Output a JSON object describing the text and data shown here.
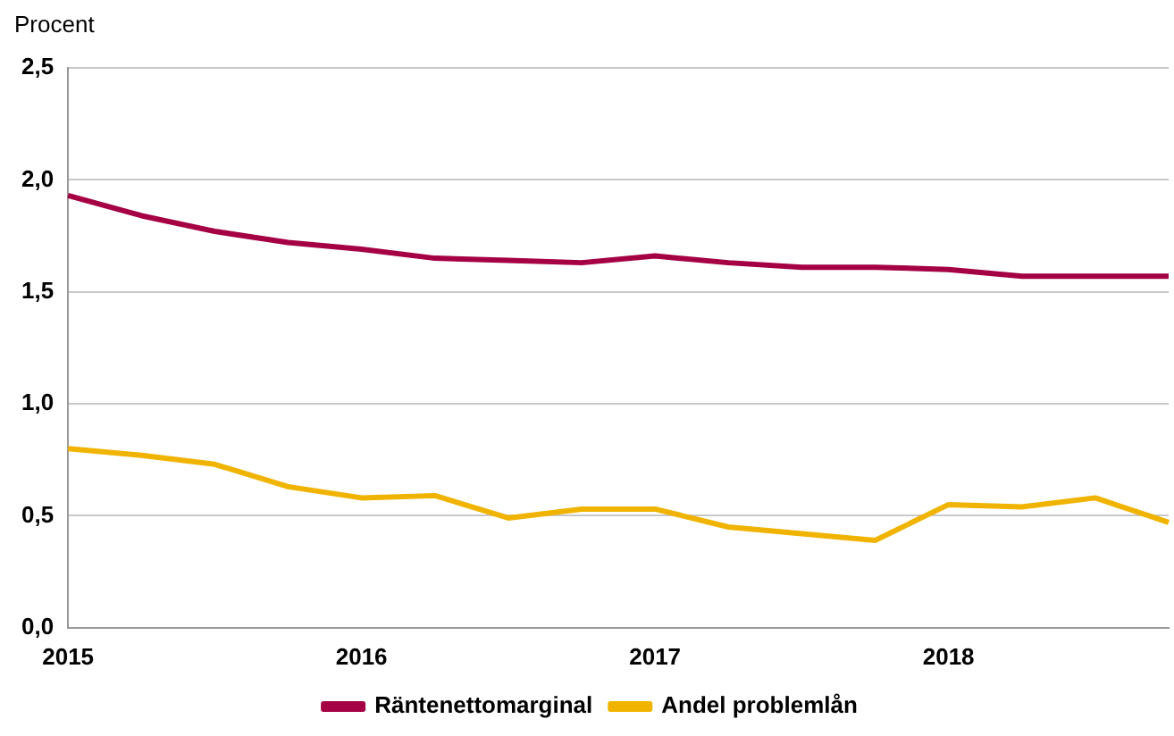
{
  "chart_data": {
    "type": "line",
    "ylabel": "Procent",
    "categories": [
      "2015",
      null,
      null,
      null,
      "2016",
      null,
      null,
      null,
      "2017",
      null,
      null,
      null,
      "2018",
      null,
      null,
      null
    ],
    "series": [
      {
        "name": "Räntenettomarginal",
        "color": "#a50044",
        "values": [
          1.93,
          1.84,
          1.77,
          1.72,
          1.69,
          1.65,
          1.64,
          1.63,
          1.66,
          1.63,
          1.61,
          1.61,
          1.6,
          1.57,
          1.57,
          1.57
        ]
      },
      {
        "name": "Andel problemlån",
        "color": "#f0b400",
        "values": [
          0.8,
          0.77,
          0.73,
          0.63,
          0.58,
          0.59,
          0.49,
          0.53,
          0.53,
          0.45,
          0.42,
          0.39,
          0.55,
          0.54,
          0.58,
          0.47
        ]
      }
    ],
    "ylim": [
      0,
      2.5
    ],
    "yticks": [
      {
        "value": 0,
        "label": "0,0"
      },
      {
        "value": 0.5,
        "label": "0,5"
      },
      {
        "value": 1,
        "label": "1,0"
      },
      {
        "value": 1.5,
        "label": "1,5"
      },
      {
        "value": 2,
        "label": "2,0"
      },
      {
        "value": 2.5,
        "label": "2,5"
      }
    ],
    "grid": "y",
    "legend": "bottom",
    "marker": "none",
    "line_style": "solid"
  }
}
